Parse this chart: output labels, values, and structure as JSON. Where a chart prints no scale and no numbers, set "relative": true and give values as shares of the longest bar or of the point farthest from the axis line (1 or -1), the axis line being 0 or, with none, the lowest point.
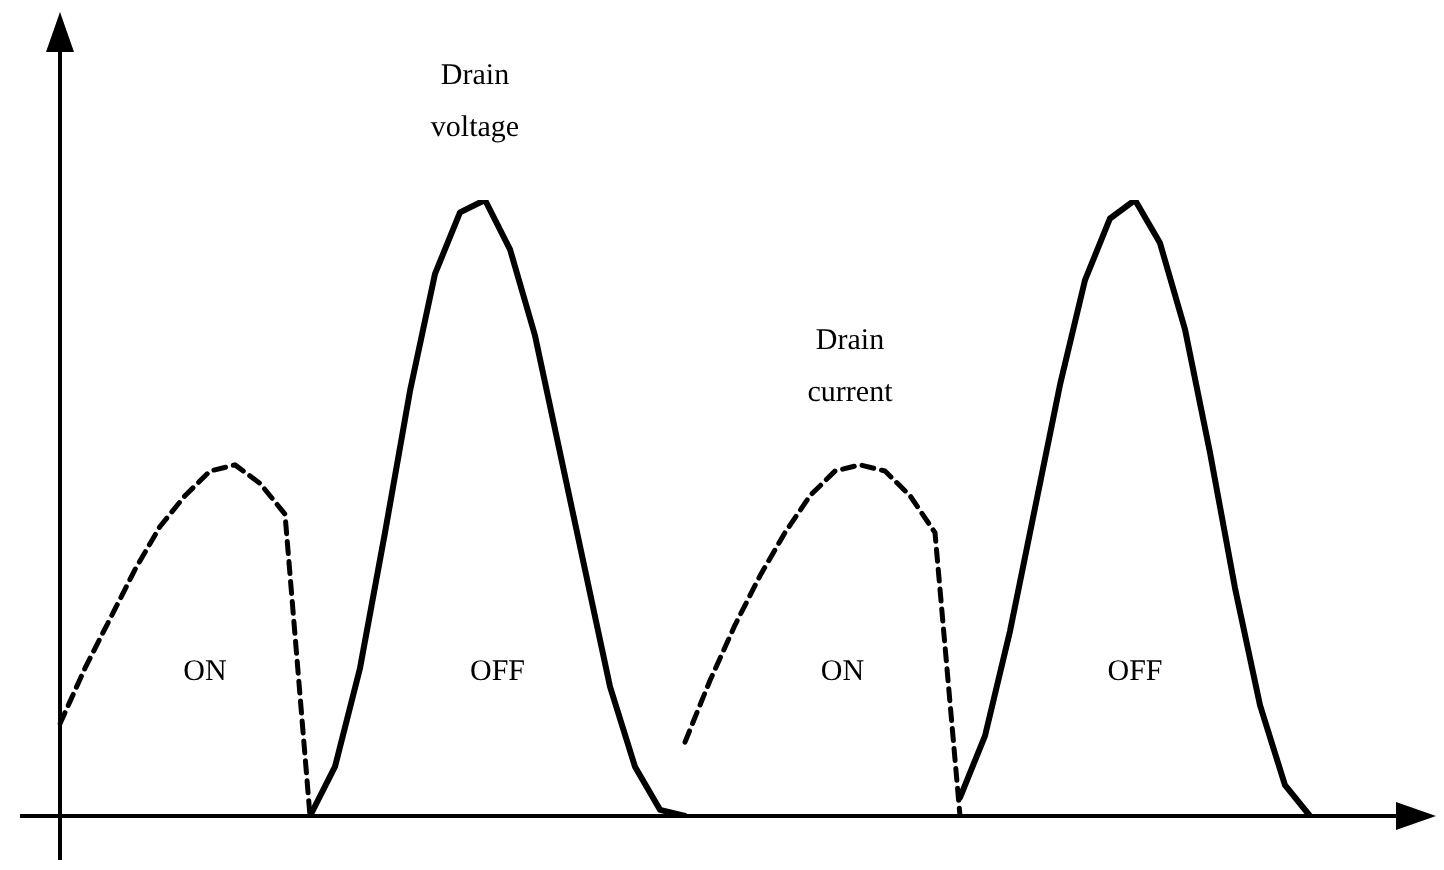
{
  "chart_data": {
    "type": "line",
    "relative": true,
    "tick_labels": false,
    "legend": false,
    "marker": "none",
    "categories": [
      null,
      null,
      null,
      null,
      null,
      null,
      null,
      null,
      null,
      null,
      null,
      null,
      null,
      null,
      null,
      null,
      null,
      null,
      null,
      null,
      null,
      null,
      null,
      null,
      null,
      null,
      null,
      null,
      null,
      null,
      null,
      null,
      null,
      null,
      null,
      null,
      null,
      null,
      null,
      null,
      null,
      null,
      null,
      null,
      null,
      null,
      null,
      null,
      null,
      null,
      null
    ],
    "series": [
      {
        "color": "#000000",
        "line_style": "dashed",
        "values": [
          0.15,
          0.24,
          0.32,
          0.4,
          0.47,
          0.52,
          0.56,
          0.57,
          0.54,
          0.49,
          0,
          null,
          null,
          null,
          null,
          null,
          null,
          null,
          null,
          null,
          null,
          null,
          null,
          null,
          null,
          null,
          null,
          null,
          null,
          null,
          null,
          null,
          null,
          null,
          null,
          null,
          null,
          null,
          null,
          null,
          null,
          null,
          null,
          null,
          null,
          null,
          null,
          null,
          null,
          null,
          null
        ]
      },
      {
        "name": "Drain voltage",
        "color": "#000000",
        "line_style": "solid",
        "values": [
          null,
          null,
          null,
          null,
          null,
          null,
          null,
          null,
          null,
          null,
          0,
          0.08,
          0.24,
          0.46,
          0.69,
          0.88,
          0.98,
          1,
          0.92,
          0.78,
          0.59,
          0.4,
          0.21,
          0.08,
          0.01,
          0,
          null,
          null,
          null,
          null,
          null,
          null,
          null,
          null,
          null,
          null,
          null,
          null,
          null,
          null,
          null,
          null,
          null,
          null,
          null,
          null,
          null,
          null,
          null,
          null,
          null
        ]
      },
      {
        "name": "Drain current",
        "color": "#000000",
        "line_style": "dashed",
        "values": [
          null,
          null,
          null,
          null,
          null,
          null,
          null,
          null,
          null,
          null,
          null,
          null,
          null,
          null,
          null,
          null,
          null,
          null,
          null,
          null,
          null,
          null,
          null,
          null,
          null,
          0.12,
          0.22,
          0.31,
          0.39,
          0.46,
          0.52,
          0.56,
          0.57,
          0.56,
          0.52,
          0.46,
          0,
          null,
          null,
          null,
          null,
          null,
          null,
          null,
          null,
          null,
          null,
          null,
          null,
          null,
          null
        ]
      },
      {
        "color": "#000000",
        "line_style": "solid",
        "values": [
          null,
          null,
          null,
          null,
          null,
          null,
          null,
          null,
          null,
          null,
          null,
          null,
          null,
          null,
          null,
          null,
          null,
          null,
          null,
          null,
          null,
          null,
          null,
          null,
          null,
          null,
          null,
          null,
          null,
          null,
          null,
          null,
          null,
          null,
          null,
          null,
          0.03,
          0.13,
          0.3,
          0.5,
          0.7,
          0.87,
          0.97,
          1,
          0.93,
          0.79,
          0.59,
          0.37,
          0.18,
          0.05,
          0
        ]
      }
    ],
    "annotations": [
      "ON",
      "OFF",
      "ON",
      "OFF"
    ]
  }
}
